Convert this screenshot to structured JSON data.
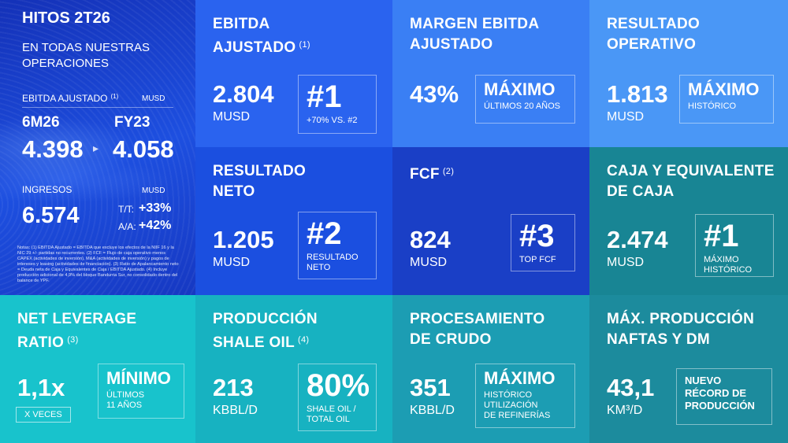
{
  "left": {
    "title": "HITOS 2T26",
    "subtitle": [
      "EN TODAS NUESTRAS",
      "OPERACIONES"
    ],
    "ebitda_label": "EBITDA AJUSTADO",
    "ebitda_note": "(1)",
    "ebitda_unit": "MUSD",
    "period_current": "6M26",
    "period_previous": "FY23",
    "value_current": "4.398",
    "value_previous": "4.058",
    "revenue_label": "INGRESOS",
    "revenue_unit": "MUSD",
    "revenue_value": "6.574",
    "qoq_label": "T/T:",
    "qoq_value": "+33%",
    "yoy_label": "A/A:",
    "yoy_value": "+42%",
    "notes": "Notas: (1) EBITDA Ajustado = EBITDA que excluye los efectos de la NIIF 16 y la NIC 29 +/- partidas no recurrentes. (2) FCF = Flujo de caja operativo menos CAPEX (actividades de inversión), M&A (actividades de inversión) y pagos de intereses y leasing (actividades de financiación). (3) Ratio de Apalancamiento neto = Deuda neta de Caja y Equivalentes de Caja / EBITDA Ajustado. (4) Incluye producción adicional de 4,9% del bloque Bandurria Sur, no consolidado dentro del balance de YPF."
  },
  "tiles": [
    {
      "title": [
        "EBITDA",
        "AJUSTADO"
      ],
      "note": "(1)",
      "value": "2.804",
      "unit": "MUSD",
      "box": {
        "heading": "#1",
        "lines": [
          "+70% VS. #2"
        ]
      }
    },
    {
      "title": [
        "MARGEN EBITDA",
        "AJUSTADO"
      ],
      "value": "43%",
      "box": {
        "heading": "MÁXIMO",
        "lines": [
          "ÚLTIMOS 20 AÑOS"
        ]
      }
    },
    {
      "title": [
        "RESULTADO",
        "OPERATIVO"
      ],
      "value": "1.813",
      "unit": "MUSD",
      "box": {
        "heading": "MÁXIMO",
        "lines": [
          "HISTÓRICO"
        ]
      }
    },
    {
      "title": [
        "RESULTADO",
        "NETO"
      ],
      "value": "1.205",
      "unit": "MUSD",
      "box": {
        "heading": "#2",
        "lines": [
          "RESULTADO",
          "NETO"
        ]
      }
    },
    {
      "title": [
        "FCF"
      ],
      "note": "(2)",
      "value": "824",
      "unit": "MUSD",
      "box": {
        "heading": "#3",
        "lines": [
          "TOP FCF"
        ]
      }
    },
    {
      "title": [
        "CAJA Y EQUIVALENTE",
        "DE CAJA"
      ],
      "value": "2.474",
      "unit": "MUSD",
      "box": {
        "heading": "#1",
        "lines": [
          "MÁXIMO",
          "HISTÓRICO"
        ]
      }
    },
    {
      "title": [
        "NET LEVERAGE",
        "RATIO"
      ],
      "note": "(3)",
      "value": "1,1x",
      "unit": "X VECES",
      "box": {
        "heading": "MÍNIMO",
        "lines": [
          "ÚLTIMOS",
          "11 AÑOS"
        ]
      }
    },
    {
      "title": [
        "PRODUCCIÓN",
        "SHALE OIL"
      ],
      "note": "(4)",
      "value": "213",
      "unit": "KBBL/D",
      "box": {
        "heading": "80%",
        "lines": [
          "SHALE OIL /",
          "TOTAL OIL"
        ]
      }
    },
    {
      "title": [
        "PROCESAMIENTO",
        "DE CRUDO"
      ],
      "value": "351",
      "unit": "KBBL/D",
      "box": {
        "heading": "MÁXIMO",
        "lines": [
          "HISTÓRICO",
          "UTILIZACIÓN",
          "DE REFINERÍAS"
        ]
      }
    },
    {
      "title": [
        "MÁX. PRODUCCIÓN",
        "NAFTAS Y DM"
      ],
      "value": "43,1",
      "unit": "KM³/D",
      "box": {
        "lines": [
          "NUEVO",
          "RÉCORD DE",
          "PRODUCCIÓN"
        ]
      }
    }
  ]
}
